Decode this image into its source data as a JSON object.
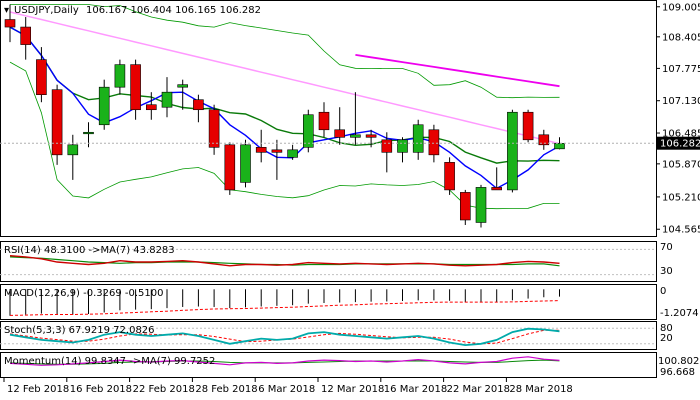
{
  "header": {
    "symbol": "USDJPY",
    "timeframe": "Daily",
    "ohlc": "106.167 106.404 106.165 106.282"
  },
  "colors": {
    "bull": "#1ab21a",
    "bear": "#e60000",
    "ma_fast": "#0000ff",
    "ma_mid": "#0a7a0a",
    "ma_slow": "#ee00ee",
    "ma_200": "#ff99ff",
    "bb": "#009900",
    "last_price_bg": "#000000"
  },
  "price_axis": {
    "ticks": [
      "109.005",
      "108.405",
      "107.775",
      "107.130",
      "106.485",
      "105.870",
      "105.210",
      "104.565"
    ],
    "current": "106.282"
  },
  "date_axis": [
    "12 Feb 2018",
    "16 Feb 2018",
    "22 Feb 2018",
    "28 Feb 2018",
    "6 Mar 2018",
    "12 Mar 2018",
    "16 Mar 2018",
    "22 Mar 2018",
    "28 Mar 2018"
  ],
  "chart_data": [
    {
      "type": "candlestick",
      "title": "USDJPY,Daily",
      "ylim": [
        104.45,
        109.1
      ],
      "candles": [
        {
          "o": 108.75,
          "h": 109.05,
          "l": 108.3,
          "c": 108.6
        },
        {
          "o": 108.6,
          "h": 108.8,
          "l": 107.95,
          "c": 108.25
        },
        {
          "o": 107.95,
          "h": 108.2,
          "l": 107.1,
          "c": 107.25
        },
        {
          "o": 107.35,
          "h": 107.45,
          "l": 105.85,
          "c": 106.05
        },
        {
          "o": 106.05,
          "h": 106.45,
          "l": 105.55,
          "c": 106.25
        },
        {
          "o": 106.5,
          "h": 106.7,
          "l": 106.2,
          "c": 106.5
        },
        {
          "o": 106.65,
          "h": 107.55,
          "l": 106.55,
          "c": 107.4
        },
        {
          "o": 107.4,
          "h": 107.95,
          "l": 107.25,
          "c": 107.85
        },
        {
          "o": 107.85,
          "h": 107.95,
          "l": 106.75,
          "c": 106.95
        },
        {
          "o": 107.05,
          "h": 107.3,
          "l": 106.75,
          "c": 106.95
        },
        {
          "o": 107.0,
          "h": 107.6,
          "l": 106.8,
          "c": 107.3
        },
        {
          "o": 107.4,
          "h": 107.55,
          "l": 106.95,
          "c": 107.45
        },
        {
          "o": 107.15,
          "h": 107.25,
          "l": 106.7,
          "c": 106.95
        },
        {
          "o": 106.95,
          "h": 107.05,
          "l": 106.05,
          "c": 106.2
        },
        {
          "o": 106.25,
          "h": 106.3,
          "l": 105.25,
          "c": 105.35
        },
        {
          "o": 105.5,
          "h": 106.35,
          "l": 105.4,
          "c": 106.25
        },
        {
          "o": 106.2,
          "h": 106.55,
          "l": 105.9,
          "c": 106.1
        },
        {
          "o": 106.15,
          "h": 106.35,
          "l": 105.55,
          "c": 106.1
        },
        {
          "o": 106.0,
          "h": 106.25,
          "l": 105.95,
          "c": 106.15
        },
        {
          "o": 106.2,
          "h": 106.95,
          "l": 106.1,
          "c": 106.85
        },
        {
          "o": 106.9,
          "h": 107.1,
          "l": 106.4,
          "c": 106.55
        },
        {
          "o": 106.55,
          "h": 107.0,
          "l": 106.25,
          "c": 106.4
        },
        {
          "o": 106.4,
          "h": 107.3,
          "l": 106.25,
          "c": 106.45
        },
        {
          "o": 106.45,
          "h": 106.55,
          "l": 106.2,
          "c": 106.4
        },
        {
          "o": 106.35,
          "h": 106.5,
          "l": 105.7,
          "c": 106.1
        },
        {
          "o": 106.1,
          "h": 106.4,
          "l": 105.9,
          "c": 106.35
        },
        {
          "o": 106.1,
          "h": 106.75,
          "l": 105.95,
          "c": 106.65
        },
        {
          "o": 106.55,
          "h": 106.65,
          "l": 105.9,
          "c": 106.05
        },
        {
          "o": 105.9,
          "h": 106.0,
          "l": 105.25,
          "c": 105.35
        },
        {
          "o": 105.3,
          "h": 105.35,
          "l": 104.65,
          "c": 104.75
        },
        {
          "o": 104.7,
          "h": 105.45,
          "l": 104.6,
          "c": 105.4
        },
        {
          "o": 105.4,
          "h": 105.8,
          "l": 105.35,
          "c": 105.35
        },
        {
          "o": 105.35,
          "h": 106.95,
          "l": 105.3,
          "c": 106.9
        },
        {
          "o": 106.9,
          "h": 106.95,
          "l": 106.3,
          "c": 106.35
        },
        {
          "o": 106.45,
          "h": 106.55,
          "l": 106.15,
          "c": 106.25
        },
        {
          "o": 106.17,
          "h": 106.4,
          "l": 106.16,
          "c": 106.28
        }
      ]
    },
    {
      "type": "line",
      "title": "RSI(14) 48.3100",
      "ma_label": "->MA(7) 43.8283",
      "levels": [
        "70",
        "30"
      ],
      "ylim": [
        20,
        80
      ],
      "rsi": [
        60,
        58,
        55,
        50,
        48,
        46,
        48,
        52,
        50,
        50,
        51,
        52,
        50,
        47,
        44,
        46,
        46,
        45,
        46,
        49,
        48,
        47,
        48,
        47,
        46,
        47,
        48,
        47,
        45,
        44,
        45,
        46,
        49,
        51,
        50,
        48
      ],
      "ma": [
        58,
        57,
        56,
        54,
        52,
        50,
        49,
        48,
        49,
        49,
        50,
        50,
        50,
        49,
        48,
        47,
        46,
        46,
        45,
        46,
        46,
        46,
        47,
        47,
        47,
        47,
        47,
        47,
        46,
        46,
        46,
        46,
        46,
        47,
        47,
        44
      ]
    },
    {
      "type": "bar",
      "title": "MACD(12,26,9) -0.3269 -0.5100",
      "levels": [
        "0",
        "-1.2074"
      ],
      "ylim": [
        -1.3,
        0.15
      ],
      "macd": [
        -1.2,
        -1.15,
        -1.1,
        -1.12,
        -1.15,
        -1.12,
        -1.05,
        -0.95,
        -0.92,
        -0.9,
        -0.85,
        -0.8,
        -0.78,
        -0.8,
        -0.85,
        -0.82,
        -0.78,
        -0.75,
        -0.72,
        -0.65,
        -0.62,
        -0.6,
        -0.58,
        -0.56,
        -0.55,
        -0.53,
        -0.5,
        -0.5,
        -0.52,
        -0.58,
        -0.6,
        -0.58,
        -0.5,
        -0.42,
        -0.36,
        -0.33
      ],
      "signal": [
        -1.18,
        -1.17,
        -1.15,
        -1.14,
        -1.14,
        -1.13,
        -1.11,
        -1.08,
        -1.05,
        -1.02,
        -0.99,
        -0.95,
        -0.92,
        -0.89,
        -0.88,
        -0.87,
        -0.85,
        -0.83,
        -0.81,
        -0.78,
        -0.75,
        -0.72,
        -0.7,
        -0.67,
        -0.65,
        -0.63,
        -0.61,
        -0.59,
        -0.58,
        -0.58,
        -0.58,
        -0.58,
        -0.57,
        -0.55,
        -0.53,
        -0.51
      ]
    },
    {
      "type": "line",
      "title": "Stoch(5,3,3) 67.9219 72.0826",
      "levels": [
        "80",
        "20"
      ],
      "ylim": [
        0,
        100
      ],
      "k": [
        55,
        45,
        35,
        30,
        25,
        35,
        55,
        65,
        55,
        50,
        55,
        60,
        50,
        35,
        20,
        30,
        40,
        35,
        40,
        60,
        65,
        55,
        50,
        45,
        40,
        45,
        50,
        40,
        25,
        15,
        20,
        35,
        65,
        78,
        75,
        68
      ],
      "d": [
        58,
        50,
        42,
        36,
        30,
        30,
        38,
        50,
        58,
        57,
        54,
        55,
        55,
        48,
        38,
        28,
        30,
        35,
        38,
        46,
        55,
        60,
        57,
        52,
        47,
        43,
        45,
        45,
        38,
        27,
        20,
        23,
        40,
        58,
        72,
        72
      ]
    },
    {
      "type": "line",
      "title": "Momentum(14) 99.8347",
      "ma_label": "->MA(7) 99.7252",
      "levels": [
        "100.8029",
        "96.668"
      ],
      "ylim": [
        96.3,
        101.2
      ],
      "mom": [
        99.2,
        99.0,
        98.8,
        98.9,
        99.1,
        99.3,
        99.6,
        99.9,
        99.6,
        99.5,
        99.7,
        99.8,
        99.5,
        99.2,
        98.9,
        99.3,
        99.4,
        99.2,
        99.3,
        99.7,
        99.9,
        99.8,
        99.6,
        99.7,
        99.5,
        99.7,
        100.0,
        99.7,
        99.3,
        99.1,
        99.4,
        99.6,
        100.3,
        100.6,
        100.1,
        99.83
      ],
      "ma": [
        99.3,
        99.2,
        99.1,
        99.0,
        99.0,
        99.1,
        99.2,
        99.4,
        99.5,
        99.5,
        99.6,
        99.7,
        99.7,
        99.6,
        99.4,
        99.3,
        99.3,
        99.3,
        99.3,
        99.4,
        99.5,
        99.6,
        99.7,
        99.7,
        99.7,
        99.7,
        99.7,
        99.7,
        99.6,
        99.5,
        99.4,
        99.4,
        99.6,
        99.8,
        99.9,
        99.73
      ]
    }
  ]
}
